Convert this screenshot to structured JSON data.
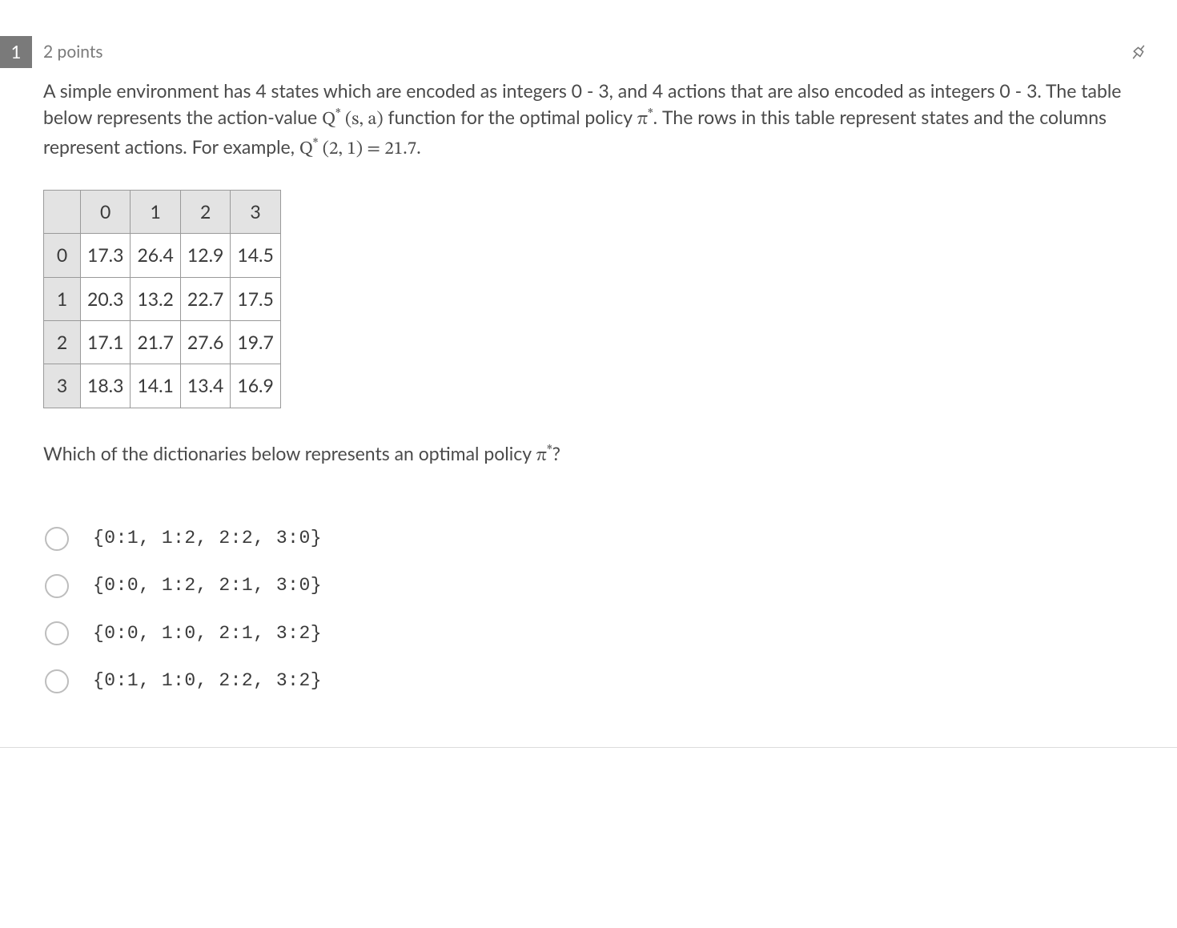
{
  "question_number": "1",
  "points_label": "2 points",
  "prompt_html": "A simple environment has 4 states which are encoded as integers 0 - 3, and 4 actions that are also encoded as integers 0 - 3. The table below represents the action-value <span class='math'>Q<span class='sup'>*</span>&nbsp;(s, a)</span> function for the optimal policy <span class='math'>π<span class='sup'>*</span></span>. The rows in this table represent states and the columns represent actions. For example, <span class='math'>Q<span class='sup'>*</span>&nbsp;(2, 1) = 21.7</span>.",
  "table": {
    "col_headers": [
      "0",
      "1",
      "2",
      "3"
    ],
    "row_headers": [
      "0",
      "1",
      "2",
      "3"
    ],
    "rows": [
      [
        "17.3",
        "26.4",
        "12.9",
        "14.5"
      ],
      [
        "20.3",
        "13.2",
        "22.7",
        "17.5"
      ],
      [
        "17.1",
        "21.7",
        "27.6",
        "19.7"
      ],
      [
        "18.3",
        "14.1",
        "13.4",
        "16.9"
      ]
    ],
    "header_bg": "#e3e3e3",
    "cell_bg": "#ffffff",
    "border_color": "#9a9a9a",
    "fontsize": 23
  },
  "followup_html": "Which of the dictionaries below represents an optimal policy <span class='math'>π<span class='sup'>*</span></span>?",
  "options": [
    "{0:1, 1:2, 2:2, 3:0}",
    "{0:0, 1:2, 2:1, 3:0}",
    "{0:0, 1:0, 2:1, 3:2}",
    "{0:1, 1:0, 2:2, 3:2}"
  ],
  "colors": {
    "text": "#4a4a4a",
    "muted": "#7a7a7a",
    "qnum_bg": "#7a7a7a",
    "qnum_fg": "#ffffff",
    "radio_border": "#bdbdbd",
    "page_bg": "#ffffff",
    "divider": "#dcdcdc"
  }
}
